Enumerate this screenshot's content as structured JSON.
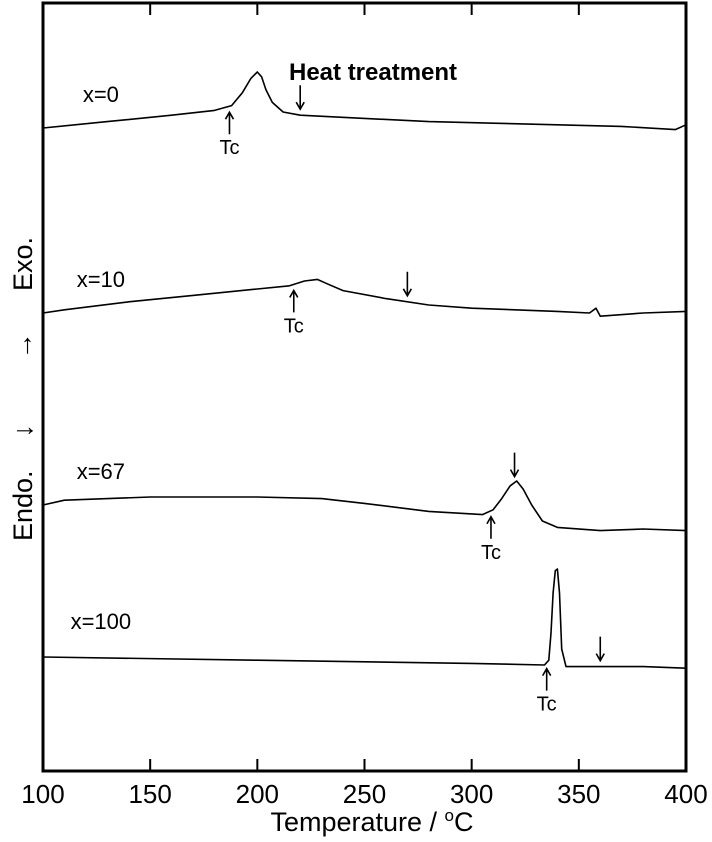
{
  "chart_data": {
    "type": "line",
    "xlabel": "Temperature / ",
    "xlabel_sup": "o",
    "xlabel_unit": "C",
    "ylabel_left": "Endo.",
    "ylabel_arrow_down": "↓",
    "ylabel_arrow_up": "→",
    "ylabel_right": "Exo.",
    "xlim": [
      100,
      400
    ],
    "xticks": [
      100,
      150,
      200,
      250,
      300,
      350,
      400
    ],
    "tick_labels": [
      "100",
      "150",
      "200",
      "250",
      "300",
      "350",
      "400"
    ],
    "grid": false,
    "annotation": "Heat treatment",
    "series": [
      {
        "label": "x=0",
        "baseline_offset": 0,
        "tc_label": "Tc",
        "tc": 187,
        "heat_treatment": 220,
        "points": [
          [
            100,
            0
          ],
          [
            130,
            4
          ],
          [
            160,
            8
          ],
          [
            180,
            11
          ],
          [
            188,
            14
          ],
          [
            193,
            22
          ],
          [
            197,
            31
          ],
          [
            200,
            35
          ],
          [
            202,
            32
          ],
          [
            204,
            24
          ],
          [
            207,
            16
          ],
          [
            212,
            10
          ],
          [
            220,
            8
          ],
          [
            250,
            6
          ],
          [
            280,
            4
          ],
          [
            310,
            3
          ],
          [
            340,
            2
          ],
          [
            370,
            1
          ],
          [
            395,
            -1
          ],
          [
            400,
            2
          ]
        ]
      },
      {
        "label": "x=10",
        "baseline_offset": -1,
        "tc_label": "Tc",
        "tc": 217,
        "heat_treatment": 270,
        "points": [
          [
            100,
            0
          ],
          [
            110,
            2
          ],
          [
            140,
            7
          ],
          [
            170,
            11
          ],
          [
            200,
            15
          ],
          [
            215,
            17
          ],
          [
            222,
            20
          ],
          [
            228,
            21
          ],
          [
            233,
            18
          ],
          [
            240,
            14
          ],
          [
            260,
            9
          ],
          [
            280,
            5
          ],
          [
            300,
            3
          ],
          [
            340,
            1
          ],
          [
            355,
            0
          ],
          [
            358,
            3
          ],
          [
            360,
            -2
          ],
          [
            380,
            0
          ],
          [
            400,
            1
          ]
        ]
      },
      {
        "label": "x=67",
        "baseline_offset": -2,
        "tc_label": "Tc",
        "tc": 309,
        "heat_treatment": 320,
        "points": [
          [
            100,
            0
          ],
          [
            110,
            3
          ],
          [
            150,
            5
          ],
          [
            200,
            5
          ],
          [
            230,
            4
          ],
          [
            250,
            1
          ],
          [
            280,
            -4
          ],
          [
            305,
            -6
          ],
          [
            310,
            -3
          ],
          [
            314,
            4
          ],
          [
            318,
            12
          ],
          [
            321,
            15
          ],
          [
            324,
            10
          ],
          [
            328,
            0
          ],
          [
            333,
            -10
          ],
          [
            340,
            -14
          ],
          [
            360,
            -16
          ],
          [
            380,
            -15
          ],
          [
            400,
            -16
          ]
        ]
      },
      {
        "label": "x=100",
        "baseline_offset": -3,
        "tc_label": "Tc",
        "tc": 335,
        "heat_treatment": 360,
        "points": [
          [
            100,
            0
          ],
          [
            200,
            -2
          ],
          [
            300,
            -4
          ],
          [
            334,
            -5
          ],
          [
            336,
            -2
          ],
          [
            337,
            15
          ],
          [
            338,
            40
          ],
          [
            339,
            54
          ],
          [
            340,
            55
          ],
          [
            341,
            40
          ],
          [
            342,
            5
          ],
          [
            344,
            -6
          ],
          [
            360,
            -6
          ],
          [
            380,
            -6
          ],
          [
            400,
            -7
          ]
        ]
      }
    ]
  }
}
